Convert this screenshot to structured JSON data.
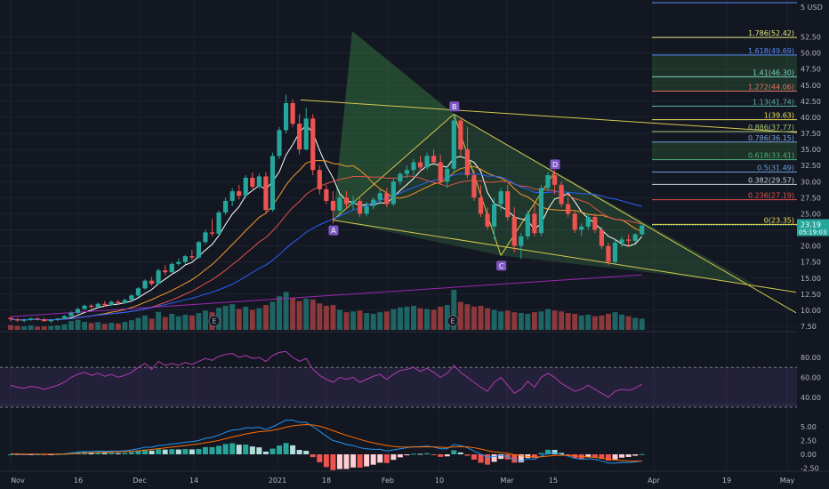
{
  "price_axis": {
    "unit_label": "USD",
    "unit_prefix": "5",
    "ticks": [
      "52.50",
      "50.00",
      "47.50",
      "45.00",
      "42.50",
      "40.00",
      "37.50",
      "35.00",
      "32.50",
      "30.00",
      "27.50",
      "25.00",
      "22.50",
      "20.00",
      "17.50",
      "15.00",
      "12.50",
      "10.00",
      "7.50"
    ],
    "current_price": "23.19",
    "countdown": "05:19:03"
  },
  "time_axis": {
    "labels": [
      "Nov",
      "16",
      "Dec",
      "14",
      "2021",
      "18",
      "Feb",
      "10",
      "Mar",
      "15",
      "Apr",
      "19",
      "May"
    ]
  },
  "rsi_axis": {
    "ticks": [
      "80.00",
      "60.00",
      "40.00"
    ]
  },
  "macd_axis": {
    "ticks": [
      "5.00",
      "2.50",
      "0.00",
      "-2.50"
    ]
  },
  "fib_levels": [
    {
      "label": "1.786(52.42)",
      "value": 52.42,
      "color": "#e6e37a"
    },
    {
      "label": "1.618(49.69)",
      "value": 49.69,
      "color": "#5b8ff9"
    },
    {
      "label": "1.41(46.30)",
      "value": 46.3,
      "color": "#7fd0c0"
    },
    {
      "label": "1.272(44.06)",
      "value": 44.06,
      "color": "#e0736a"
    },
    {
      "label": "1.13(41.74)",
      "value": 41.74,
      "color": "#5fb6a8"
    },
    {
      "label": "1(39.63)",
      "value": 39.63,
      "color": "#f0e05a"
    },
    {
      "label": "0.886(37.77)",
      "value": 37.77,
      "color": "#a7c779"
    },
    {
      "label": "0.786(36.15)",
      "value": 36.15,
      "color": "#7aa3e0"
    },
    {
      "label": "0.618(33.41)",
      "value": 33.41,
      "color": "#4caf7d"
    },
    {
      "label": "0.5(31.49)",
      "value": 31.49,
      "color": "#6ba0d8"
    },
    {
      "label": "0.382(29.57)",
      "value": 29.57,
      "color": "#c9ced8"
    },
    {
      "label": "0.236(27.19)",
      "value": 27.19,
      "color": "#e0524a"
    },
    {
      "label": "0(23.35)",
      "value": 23.35,
      "color": "#f0e05a"
    }
  ],
  "pattern_points": [
    {
      "label": "A",
      "date_index": 48,
      "price": 24.0
    },
    {
      "label": "B",
      "date_index": 66,
      "price": 40.5
    },
    {
      "label": "C",
      "date_index": 73,
      "price": 18.5
    },
    {
      "label": "D",
      "date_index": 81,
      "price": 31.5
    }
  ],
  "earnings_markers": [
    "E",
    "E"
  ],
  "colors": {
    "up": "#26a69a",
    "down": "#ef5350",
    "bg": "#131722",
    "grid": "#1e222d",
    "ma_white": "#ffffff",
    "ma_orange": "#f59b2c",
    "ma_red": "#e0524a",
    "ma_blue": "#2962ff",
    "ma_purple": "#9c27b0",
    "rsi_line": "#b23cb0",
    "macd_line": "#2196f3",
    "signal_line": "#ff6d00",
    "price_tag": "#26a69a",
    "pattern": "#7e57c2"
  },
  "chart_data": {
    "type": "candlestick",
    "price_range": [
      6.5,
      55.5
    ],
    "candles": [
      [
        8.8,
        9.0,
        8.3,
        8.6
      ],
      [
        8.6,
        8.8,
        8.2,
        8.4
      ],
      [
        8.4,
        8.7,
        8.1,
        8.5
      ],
      [
        8.5,
        8.9,
        8.3,
        8.7
      ],
      [
        8.7,
        8.9,
        8.4,
        8.6
      ],
      [
        8.6,
        8.8,
        8.2,
        8.3
      ],
      [
        8.3,
        8.6,
        8.0,
        8.5
      ],
      [
        8.5,
        8.8,
        8.3,
        8.7
      ],
      [
        8.7,
        9.2,
        8.6,
        9.1
      ],
      [
        9.1,
        9.8,
        9.0,
        9.6
      ],
      [
        9.6,
        10.4,
        9.4,
        10.2
      ],
      [
        10.2,
        10.9,
        10.0,
        10.7
      ],
      [
        10.7,
        11.0,
        10.3,
        10.5
      ],
      [
        10.5,
        11.2,
        10.4,
        11.0
      ],
      [
        11.0,
        11.4,
        10.6,
        10.8
      ],
      [
        10.8,
        11.5,
        10.7,
        11.3
      ],
      [
        11.3,
        11.6,
        10.9,
        11.1
      ],
      [
        11.1,
        11.8,
        11.0,
        11.6
      ],
      [
        11.6,
        12.5,
        11.4,
        12.3
      ],
      [
        12.3,
        13.6,
        12.1,
        13.4
      ],
      [
        13.4,
        14.8,
        13.2,
        14.6
      ],
      [
        14.6,
        15.2,
        13.8,
        14.1
      ],
      [
        14.1,
        16.5,
        14.0,
        16.2
      ],
      [
        16.2,
        17.0,
        15.5,
        15.9
      ],
      [
        15.9,
        17.4,
        15.8,
        17.2
      ],
      [
        17.2,
        18.0,
        16.9,
        17.5
      ],
      [
        17.5,
        18.6,
        17.2,
        18.4
      ],
      [
        18.4,
        19.4,
        17.8,
        18.2
      ],
      [
        18.2,
        20.8,
        18.0,
        20.6
      ],
      [
        20.6,
        22.5,
        20.3,
        22.1
      ],
      [
        22.1,
        24.2,
        21.5,
        21.9
      ],
      [
        21.9,
        25.5,
        21.6,
        25.2
      ],
      [
        25.2,
        27.5,
        24.8,
        27.0
      ],
      [
        27.0,
        29.0,
        26.2,
        28.5
      ],
      [
        28.5,
        29.5,
        27.2,
        27.8
      ],
      [
        27.8,
        31.0,
        27.5,
        30.6
      ],
      [
        30.6,
        31.4,
        28.8,
        29.2
      ],
      [
        29.2,
        31.2,
        28.9,
        30.8
      ],
      [
        30.8,
        31.5,
        25.0,
        25.6
      ],
      [
        25.6,
        34.5,
        25.3,
        34.0
      ],
      [
        34.0,
        38.5,
        33.5,
        38.0
      ],
      [
        38.0,
        43.5,
        37.5,
        42.2
      ],
      [
        42.2,
        42.8,
        38.5,
        39.0
      ],
      [
        39.0,
        40.5,
        34.2,
        35.0
      ],
      [
        35.0,
        41.5,
        34.8,
        39.8
      ],
      [
        39.8,
        40.5,
        31.0,
        31.8
      ],
      [
        31.8,
        32.5,
        28.0,
        28.8
      ],
      [
        28.8,
        29.5,
        26.5,
        27.0
      ],
      [
        27.0,
        28.5,
        23.5,
        25.5
      ],
      [
        25.5,
        28.0,
        25.0,
        27.5
      ],
      [
        27.5,
        28.5,
        25.8,
        26.5
      ],
      [
        26.5,
        27.8,
        25.6,
        27.0
      ],
      [
        27.0,
        27.5,
        24.5,
        25.0
      ],
      [
        25.0,
        26.8,
        24.6,
        26.2
      ],
      [
        26.2,
        27.6,
        25.7,
        27.2
      ],
      [
        27.2,
        28.8,
        26.5,
        28.2
      ],
      [
        28.2,
        29.0,
        26.0,
        26.5
      ],
      [
        26.5,
        30.5,
        26.2,
        30.0
      ],
      [
        30.0,
        31.5,
        29.5,
        31.2
      ],
      [
        31.2,
        32.5,
        30.5,
        31.8
      ],
      [
        31.8,
        33.5,
        31.0,
        33.0
      ],
      [
        33.0,
        34.0,
        31.6,
        32.2
      ],
      [
        32.2,
        34.5,
        31.8,
        34.0
      ],
      [
        34.0,
        35.0,
        32.5,
        33.0
      ],
      [
        33.0,
        34.2,
        29.5,
        30.0
      ],
      [
        30.0,
        32.5,
        29.0,
        32.0
      ],
      [
        32.0,
        40.5,
        31.5,
        39.5
      ],
      [
        39.5,
        40.0,
        34.0,
        35.0
      ],
      [
        35.0,
        38.5,
        30.5,
        31.0
      ],
      [
        31.0,
        31.8,
        27.0,
        27.5
      ],
      [
        27.5,
        29.5,
        24.5,
        25.0
      ],
      [
        25.0,
        26.0,
        22.5,
        23.0
      ],
      [
        23.0,
        27.5,
        21.0,
        26.5
      ],
      [
        26.5,
        29.0,
        25.5,
        28.5
      ],
      [
        28.5,
        29.5,
        24.0,
        24.5
      ],
      [
        24.5,
        26.0,
        19.0,
        20.0
      ],
      [
        20.0,
        22.0,
        18.0,
        21.5
      ],
      [
        21.5,
        25.5,
        21.0,
        25.0
      ],
      [
        25.0,
        26.5,
        21.5,
        22.0
      ],
      [
        22.0,
        29.5,
        21.5,
        29.0
      ],
      [
        29.0,
        31.5,
        28.5,
        31.0
      ],
      [
        31.0,
        31.8,
        28.0,
        29.5
      ],
      [
        29.5,
        30.0,
        26.0,
        26.5
      ],
      [
        26.5,
        27.5,
        24.5,
        25.0
      ],
      [
        25.0,
        25.5,
        22.0,
        22.5
      ],
      [
        22.5,
        23.5,
        21.5,
        23.0
      ],
      [
        23.0,
        25.0,
        22.5,
        24.5
      ],
      [
        24.5,
        25.0,
        22.0,
        22.5
      ],
      [
        22.5,
        23.0,
        19.5,
        20.0
      ],
      [
        20.0,
        20.5,
        17.0,
        17.5
      ],
      [
        17.5,
        21.0,
        17.2,
        20.5
      ],
      [
        20.5,
        21.5,
        19.8,
        21.0
      ],
      [
        21.0,
        21.8,
        20.0,
        20.8
      ],
      [
        20.8,
        22.0,
        20.5,
        21.8
      ],
      [
        21.8,
        23.6,
        21.6,
        23.19
      ]
    ],
    "volume": [
      12,
      10,
      9,
      11,
      8,
      9,
      10,
      11,
      14,
      22,
      25,
      20,
      17,
      19,
      15,
      18,
      16,
      20,
      24,
      30,
      36,
      28,
      45,
      32,
      40,
      34,
      38,
      36,
      42,
      48,
      44,
      55,
      60,
      64,
      52,
      58,
      50,
      54,
      62,
      70,
      84,
      95,
      80,
      72,
      78,
      76,
      66,
      60,
      62,
      50,
      44,
      46,
      48,
      42,
      40,
      44,
      46,
      52,
      56,
      58,
      60,
      54,
      52,
      50,
      58,
      62,
      100,
      70,
      64,
      58,
      60,
      54,
      50,
      46,
      48,
      44,
      42,
      40,
      44,
      46,
      52,
      48,
      46,
      42,
      40,
      36,
      38,
      34,
      36,
      40,
      44,
      38,
      34,
      30,
      28
    ],
    "rsi": [
      52,
      50,
      49,
      51,
      50,
      48,
      50,
      52,
      55,
      60,
      63,
      65,
      62,
      64,
      61,
      63,
      60,
      62,
      65,
      70,
      74,
      68,
      76,
      72,
      74,
      72,
      75,
      73,
      76,
      79,
      77,
      81,
      83,
      84,
      80,
      82,
      79,
      80,
      76,
      82,
      85,
      86,
      80,
      76,
      79,
      68,
      62,
      58,
      55,
      60,
      58,
      60,
      55,
      58,
      61,
      63,
      58,
      63,
      67,
      68,
      70,
      66,
      69,
      65,
      60,
      64,
      72,
      65,
      60,
      55,
      50,
      46,
      55,
      60,
      52,
      44,
      48,
      56,
      50,
      60,
      64,
      60,
      54,
      50,
      46,
      48,
      52,
      48,
      44,
      40,
      46,
      48,
      47,
      49,
      53
    ],
    "macd": [
      0.1,
      0.0,
      -0.05,
      0.0,
      0.05,
      0.0,
      0.02,
      0.05,
      0.1,
      0.25,
      0.4,
      0.5,
      0.5,
      0.6,
      0.55,
      0.6,
      0.58,
      0.65,
      0.8,
      1.0,
      1.3,
      1.3,
      1.6,
      1.7,
      1.9,
      2.0,
      2.2,
      2.3,
      2.5,
      2.9,
      3.1,
      3.5,
      4.0,
      4.4,
      4.5,
      4.8,
      4.8,
      4.9,
      4.5,
      5.0,
      5.6,
      6.2,
      6.2,
      5.8,
      5.8,
      5.0,
      4.2,
      3.3,
      2.5,
      2.2,
      1.8,
      1.6,
      1.2,
      1.0,
      0.9,
      0.9,
      0.6,
      0.8,
      1.0,
      1.2,
      1.4,
      1.4,
      1.5,
      1.3,
      1.0,
      1.0,
      1.8,
      1.6,
      1.2,
      0.6,
      0.0,
      -0.5,
      -0.4,
      -0.2,
      -0.4,
      -1.0,
      -1.2,
      -0.8,
      -0.9,
      -0.3,
      0.2,
      0.3,
      0.0,
      -0.3,
      -0.7,
      -0.9,
      -0.8,
      -0.9,
      -1.2,
      -1.6,
      -1.6,
      -1.5,
      -1.5,
      -1.4,
      -1.2
    ],
    "signal": [
      0.1,
      0.08,
      0.05,
      0.04,
      0.04,
      0.03,
      0.03,
      0.03,
      0.05,
      0.09,
      0.15,
      0.22,
      0.28,
      0.34,
      0.38,
      0.42,
      0.45,
      0.49,
      0.55,
      0.64,
      0.77,
      0.88,
      1.02,
      1.16,
      1.31,
      1.45,
      1.6,
      1.74,
      1.89,
      2.09,
      2.29,
      2.53,
      2.83,
      3.14,
      3.41,
      3.69,
      3.91,
      4.11,
      4.19,
      4.35,
      4.6,
      4.92,
      5.18,
      5.3,
      5.4,
      5.32,
      5.1,
      4.74,
      4.29,
      3.87,
      3.46,
      3.09,
      2.71,
      2.37,
      2.08,
      1.84,
      1.59,
      1.43,
      1.34,
      1.31,
      1.33,
      1.34,
      1.37,
      1.36,
      1.29,
      1.23,
      1.34,
      1.39,
      1.35,
      1.2,
      0.96,
      0.67,
      0.45,
      0.32,
      0.18,
      -0.06,
      -0.29,
      -0.39,
      -0.49,
      -0.45,
      -0.32,
      -0.2,
      -0.16,
      -0.19,
      -0.29,
      -0.41,
      -0.49,
      -0.57,
      -0.7,
      -0.88,
      -1.02,
      -1.12,
      -1.2,
      -1.24,
      -1.23
    ]
  }
}
